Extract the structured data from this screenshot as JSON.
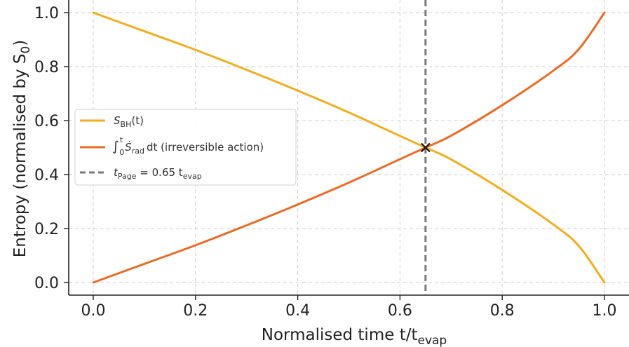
{
  "chart_data": {
    "type": "line",
    "xlabel": {
      "main": "Normalised time t/t",
      "sub": "evap"
    },
    "ylabel": {
      "main": "Entropy (normalised by S",
      "sub": "0",
      "tail": ")"
    },
    "xlim": [
      0.0,
      1.0
    ],
    "ylim": [
      0.0,
      1.0
    ],
    "xticks": [
      "0.0",
      "0.2",
      "0.4",
      "0.6",
      "0.8",
      "1.0"
    ],
    "yticks": [
      "0.0",
      "0.2",
      "0.4",
      "0.6",
      "0.8",
      "1.0"
    ],
    "grid": true,
    "legend_position": "center-left",
    "series": [
      {
        "name": "S_BH(t)",
        "legend": {
          "main": "S",
          "sub": "BH",
          "tail": "(t)"
        },
        "color": "#f5ad1e",
        "x": [
          0.0,
          0.1,
          0.2,
          0.3,
          0.4,
          0.5,
          0.6,
          0.65,
          0.7,
          0.8,
          0.9,
          0.95,
          1.0
        ],
        "y": [
          1.0,
          0.931,
          0.862,
          0.788,
          0.711,
          0.63,
          0.543,
          0.5,
          0.456,
          0.343,
          0.215,
          0.135,
          0.0
        ]
      },
      {
        "name": "∫ Ṡ_rad dt (irreversible action)",
        "legend": {
          "integral": "∫",
          "upper": "t",
          "lower": "0",
          "main": "Ṡ",
          "sub": "rad",
          "tail": "dt  (irreversible action)"
        },
        "color": "#ee6a23",
        "x": [
          0.0,
          0.1,
          0.2,
          0.3,
          0.4,
          0.5,
          0.6,
          0.65,
          0.7,
          0.8,
          0.9,
          0.95,
          1.0
        ],
        "y": [
          0.0,
          0.069,
          0.138,
          0.212,
          0.289,
          0.37,
          0.457,
          0.5,
          0.544,
          0.657,
          0.785,
          0.865,
          1.0
        ]
      }
    ],
    "vline": {
      "x": 0.65,
      "color": "#7a7a7a",
      "legend": {
        "main": "t",
        "sub": "Page",
        "tail": " = 0.65 t",
        "sub2": "evap"
      }
    },
    "marker": {
      "x": 0.65,
      "y": 0.5,
      "symbol": "x",
      "color": "#111111"
    }
  }
}
